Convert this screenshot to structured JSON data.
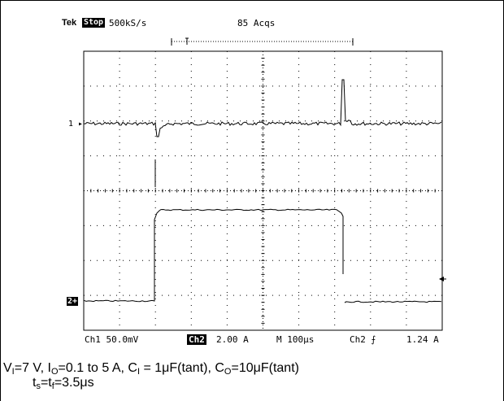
{
  "header": {
    "brand": "Tek",
    "run_state": "Stop",
    "sample_rate": "500kS/s",
    "acquisitions": "85 Acqs"
  },
  "channel_markers": {
    "ch1": "1",
    "ch2": "2"
  },
  "status_bar": {
    "ch1_scale": "Ch1  50.0mV",
    "ch2_label": "Ch2",
    "ch2_scale": "2.00 A",
    "timebase": "M 100μs",
    "trigger": "Ch2 ⨍",
    "trigger_level": "1.24 A"
  },
  "caption": {
    "line1": {
      "vi_label": "V",
      "vi_sub": "I",
      "vi_value": "=7 V, I",
      "io_sub": "O",
      "io_value": "=0.1 to 5 A, C",
      "ci_sub": "I",
      "ci_value": " = 1μF(tant), C",
      "co_sub": "O",
      "co_value": "=10μF(tant)"
    },
    "line2": {
      "ts_label": "t",
      "ts_sub": "s",
      "eq": "=t",
      "tf_sub": "f",
      "value": "=3.5μs"
    }
  },
  "colors": {
    "trace": "#000000",
    "background": "#ffffff"
  }
}
